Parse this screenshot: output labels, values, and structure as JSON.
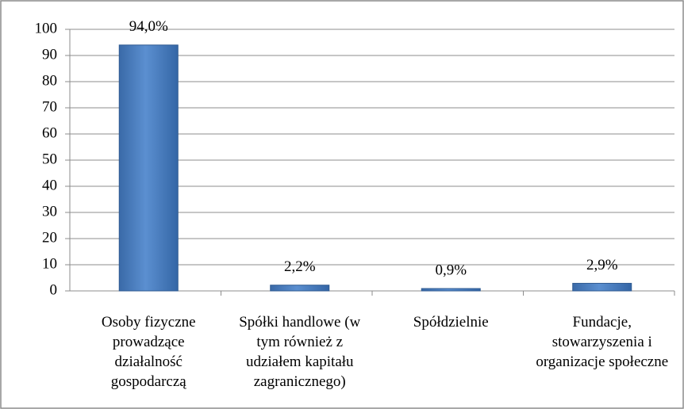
{
  "chart_data": {
    "type": "bar",
    "categories": [
      "Osoby fizyczne prowadzące działalność gospodarczą",
      "Spółki handlowe (w tym również z udziałem kapitału zagranicznego)",
      "Spółdzielnie",
      "Fundacje, stowarzyszenia i organizacje społeczne"
    ],
    "values": [
      94.0,
      2.2,
      0.9,
      2.9
    ],
    "value_labels": [
      "94,0%",
      "2,2%",
      "0,9%",
      "2,9%"
    ],
    "color": "#4f81bd",
    "ylim": [
      0,
      100
    ],
    "yticks": [
      0,
      10,
      20,
      30,
      40,
      50,
      60,
      70,
      80,
      90,
      100
    ],
    "grid": true
  }
}
